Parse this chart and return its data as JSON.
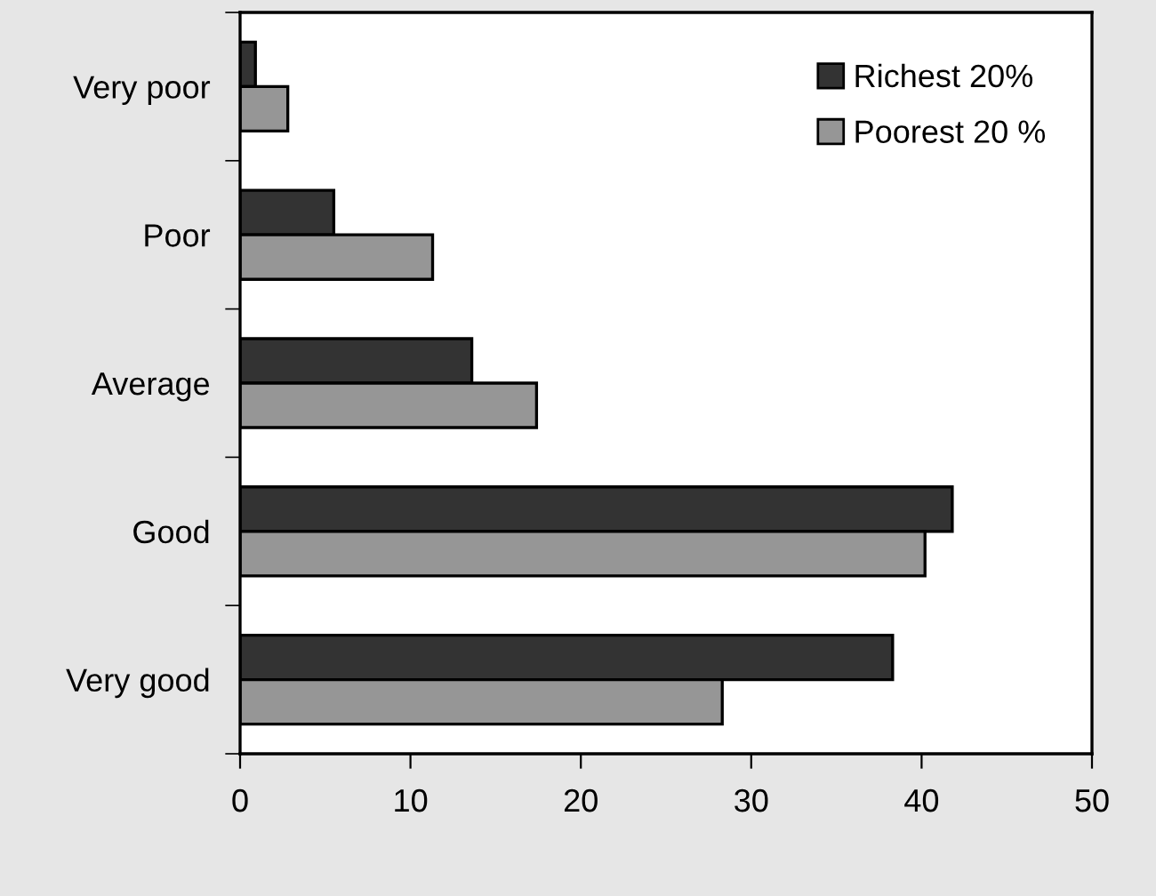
{
  "chart_data": {
    "type": "bar",
    "orientation": "horizontal",
    "categories": [
      "Very poor",
      "Poor",
      "Average",
      "Good",
      "Very good"
    ],
    "series": [
      {
        "name": "Richest 20%",
        "color": "#333333",
        "values": [
          0.9,
          5.5,
          13.6,
          41.8,
          38.3
        ]
      },
      {
        "name": "Poorest 20 %",
        "color": "#969696",
        "values": [
          2.8,
          11.3,
          17.4,
          40.2,
          28.3
        ]
      }
    ],
    "xlim": [
      0,
      50
    ],
    "xticks": [
      0,
      10,
      20,
      30,
      40,
      50
    ],
    "grid": false,
    "legend": "top right"
  }
}
